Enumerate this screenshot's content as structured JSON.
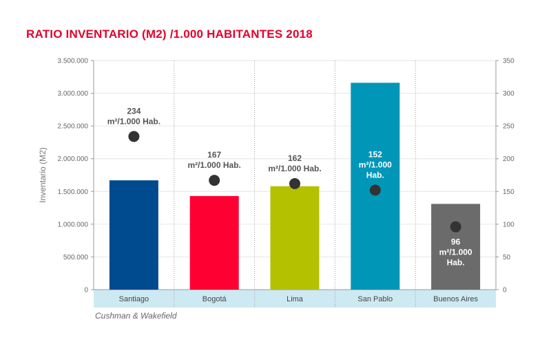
{
  "chart_data": {
    "type": "bar",
    "title": "RATIO INVENTARIO  (M2) /1.000 HABITANTES  2018",
    "ylabel": "Inventario  (M2)",
    "y2label": "",
    "ylim": [
      0,
      3500000
    ],
    "y2lim": [
      0,
      350
    ],
    "yticks": [
      "0",
      "500.000",
      "1.000.000",
      "1.500.000",
      "2.000.000",
      "2.500.000",
      "3.000.000",
      "3.500.000"
    ],
    "y2ticks": [
      "0",
      "50",
      "100",
      "150",
      "200",
      "250",
      "300",
      "350"
    ],
    "categories": [
      "Santiago",
      "Bogotá",
      "Lima",
      "San Pablo",
      "Buenos Aires"
    ],
    "series": [
      {
        "type": "bar",
        "axis": "left",
        "values": [
          1670000,
          1430000,
          1580000,
          3160000,
          1310000
        ]
      },
      {
        "type": "scatter",
        "axis": "right",
        "values": [
          234,
          167,
          162,
          152,
          96
        ]
      }
    ],
    "annotations": [
      {
        "lines": [
          "234",
          "m²/1.000 Hab."
        ]
      },
      {
        "lines": [
          "167",
          "m²/1.000 Hab."
        ]
      },
      {
        "lines": [
          "162",
          "m²/1.000 Hab."
        ]
      },
      {
        "lines": [
          "152",
          "m²/1.000",
          "Hab."
        ]
      },
      {
        "lines": [
          "96",
          "m²/1.000",
          "Hab."
        ]
      }
    ],
    "colors": [
      "#004a8f",
      "#ff0033",
      "#b3c100",
      "#0096b8",
      "#6b6b6b"
    ],
    "annotation_colors": [
      "#555555",
      "#555555",
      "#555555",
      "#ffffff",
      "#ffffff"
    ],
    "marker_color": "#333333",
    "category_band_color": "#cde9f2",
    "grid": true,
    "legend": "none"
  },
  "source": "Cushman & Wakefield"
}
